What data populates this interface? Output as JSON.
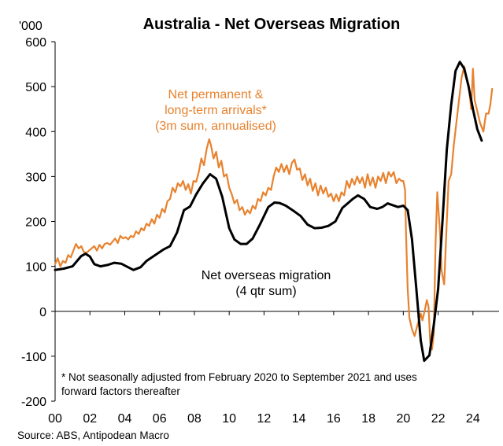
{
  "chart_data": {
    "type": "line",
    "title": "Australia - Net Overseas Migration",
    "y_unit_label": "'000",
    "xlim": [
      2000,
      2025.5
    ],
    "ylim": [
      -200,
      600
    ],
    "y_ticks": [
      "-200",
      "-100",
      "0",
      "100",
      "200",
      "300",
      "400",
      "500",
      "600"
    ],
    "x_ticks": [
      {
        "value": 2000,
        "label": "00"
      },
      {
        "value": 2002,
        "label": "02"
      },
      {
        "value": 2004,
        "label": "04"
      },
      {
        "value": 2006,
        "label": "06"
      },
      {
        "value": 2008,
        "label": "08"
      },
      {
        "value": 2010,
        "label": "10"
      },
      {
        "value": 2012,
        "label": "12"
      },
      {
        "value": 2014,
        "label": "14"
      },
      {
        "value": 2016,
        "label": "16"
      },
      {
        "value": 2018,
        "label": "18"
      },
      {
        "value": 2020,
        "label": "20"
      },
      {
        "value": 2022,
        "label": "22"
      },
      {
        "value": 2024,
        "label": "24"
      }
    ],
    "grid": false,
    "annotations": {
      "orange_label": [
        "Net permanent &",
        "long-term arrivals*",
        "(3m sum, annualised)"
      ],
      "black_label": [
        "Net overseas migration",
        "(4 qtr sum)"
      ],
      "footnote": [
        "* Not seasonally adjusted from February 2020 to September 2021 and uses",
        "forward factors thereafter"
      ]
    },
    "source": "Source: ABS, Antipodean Macro",
    "series": [
      {
        "key": "arrivals",
        "color": "#E8822E",
        "width": 2.2,
        "points": [
          [
            2000.0,
            105
          ],
          [
            2000.15,
            118
          ],
          [
            2000.3,
            100
          ],
          [
            2000.45,
            112
          ],
          [
            2000.6,
            108
          ],
          [
            2000.75,
            125
          ],
          [
            2000.9,
            120
          ],
          [
            2001.05,
            135
          ],
          [
            2001.2,
            150
          ],
          [
            2001.35,
            140
          ],
          [
            2001.5,
            145
          ],
          [
            2001.65,
            132
          ],
          [
            2001.8,
            130
          ],
          [
            2001.95,
            135
          ],
          [
            2002.1,
            140
          ],
          [
            2002.25,
            145
          ],
          [
            2002.4,
            135
          ],
          [
            2002.55,
            148
          ],
          [
            2002.7,
            140
          ],
          [
            2002.85,
            150
          ],
          [
            2003.0,
            152
          ],
          [
            2003.15,
            148
          ],
          [
            2003.3,
            155
          ],
          [
            2003.45,
            162
          ],
          [
            2003.6,
            152
          ],
          [
            2003.75,
            168
          ],
          [
            2003.9,
            162
          ],
          [
            2004.05,
            165
          ],
          [
            2004.2,
            160
          ],
          [
            2004.35,
            168
          ],
          [
            2004.5,
            165
          ],
          [
            2004.65,
            178
          ],
          [
            2004.8,
            172
          ],
          [
            2004.95,
            185
          ],
          [
            2005.1,
            180
          ],
          [
            2005.25,
            195
          ],
          [
            2005.4,
            190
          ],
          [
            2005.55,
            205
          ],
          [
            2005.7,
            195
          ],
          [
            2005.85,
            215
          ],
          [
            2006.0,
            208
          ],
          [
            2006.15,
            228
          ],
          [
            2006.3,
            220
          ],
          [
            2006.45,
            245
          ],
          [
            2006.6,
            250
          ],
          [
            2006.75,
            275
          ],
          [
            2006.9,
            265
          ],
          [
            2007.05,
            285
          ],
          [
            2007.2,
            278
          ],
          [
            2007.35,
            290
          ],
          [
            2007.5,
            270
          ],
          [
            2007.65,
            283
          ],
          [
            2007.8,
            262
          ],
          [
            2007.95,
            290
          ],
          [
            2008.1,
            288
          ],
          [
            2008.25,
            310
          ],
          [
            2008.4,
            340
          ],
          [
            2008.55,
            325
          ],
          [
            2008.7,
            360
          ],
          [
            2008.85,
            383
          ],
          [
            2008.95,
            370
          ],
          [
            2009.1,
            340
          ],
          [
            2009.25,
            355
          ],
          [
            2009.4,
            320
          ],
          [
            2009.55,
            335
          ],
          [
            2009.7,
            300
          ],
          [
            2009.85,
            305
          ],
          [
            2010.0,
            275
          ],
          [
            2010.15,
            260
          ],
          [
            2010.3,
            240
          ],
          [
            2010.45,
            248
          ],
          [
            2010.6,
            225
          ],
          [
            2010.75,
            232
          ],
          [
            2010.9,
            215
          ],
          [
            2011.05,
            225
          ],
          [
            2011.2,
            218
          ],
          [
            2011.35,
            235
          ],
          [
            2011.5,
            228
          ],
          [
            2011.65,
            250
          ],
          [
            2011.8,
            245
          ],
          [
            2011.95,
            265
          ],
          [
            2012.1,
            258
          ],
          [
            2012.25,
            275
          ],
          [
            2012.4,
            270
          ],
          [
            2012.55,
            300
          ],
          [
            2012.7,
            320
          ],
          [
            2012.85,
            310
          ],
          [
            2013.0,
            328
          ],
          [
            2013.15,
            310
          ],
          [
            2013.3,
            325
          ],
          [
            2013.45,
            305
          ],
          [
            2013.6,
            330
          ],
          [
            2013.75,
            338
          ],
          [
            2013.9,
            315
          ],
          [
            2014.05,
            318
          ],
          [
            2014.2,
            292
          ],
          [
            2014.35,
            305
          ],
          [
            2014.5,
            280
          ],
          [
            2014.65,
            295
          ],
          [
            2014.8,
            268
          ],
          [
            2014.95,
            285
          ],
          [
            2015.1,
            258
          ],
          [
            2015.25,
            280
          ],
          [
            2015.4,
            262
          ],
          [
            2015.55,
            275
          ],
          [
            2015.7,
            255
          ],
          [
            2015.85,
            262
          ],
          [
            2016.0,
            245
          ],
          [
            2016.15,
            260
          ],
          [
            2016.3,
            245
          ],
          [
            2016.45,
            265
          ],
          [
            2016.6,
            258
          ],
          [
            2016.75,
            290
          ],
          [
            2016.9,
            275
          ],
          [
            2017.05,
            295
          ],
          [
            2017.2,
            282
          ],
          [
            2017.35,
            300
          ],
          [
            2017.5,
            285
          ],
          [
            2017.65,
            298
          ],
          [
            2017.8,
            275
          ],
          [
            2017.95,
            305
          ],
          [
            2018.1,
            280
          ],
          [
            2018.25,
            298
          ],
          [
            2018.4,
            275
          ],
          [
            2018.55,
            300
          ],
          [
            2018.7,
            290
          ],
          [
            2018.85,
            308
          ],
          [
            2019.0,
            285
          ],
          [
            2019.15,
            310
          ],
          [
            2019.3,
            300
          ],
          [
            2019.45,
            310
          ],
          [
            2019.6,
            285
          ],
          [
            2019.75,
            295
          ],
          [
            2019.9,
            290
          ],
          [
            2020.0,
            290
          ],
          [
            2020.1,
            270
          ],
          [
            2020.15,
            180
          ],
          [
            2020.25,
            50
          ],
          [
            2020.35,
            -15
          ],
          [
            2020.5,
            -40
          ],
          [
            2020.65,
            -55
          ],
          [
            2020.85,
            -25
          ],
          [
            2021.0,
            -5
          ],
          [
            2021.1,
            -20
          ],
          [
            2021.25,
            5
          ],
          [
            2021.35,
            25
          ],
          [
            2021.45,
            10
          ],
          [
            2021.55,
            -70
          ],
          [
            2021.65,
            -85
          ],
          [
            2021.75,
            -50
          ],
          [
            2021.85,
            150
          ],
          [
            2021.95,
            265
          ],
          [
            2022.1,
            180
          ],
          [
            2022.2,
            90
          ],
          [
            2022.35,
            60
          ],
          [
            2022.5,
            200
          ],
          [
            2022.6,
            290
          ],
          [
            2022.75,
            305
          ],
          [
            2022.9,
            370
          ],
          [
            2023.05,
            420
          ],
          [
            2023.2,
            470
          ],
          [
            2023.35,
            520
          ],
          [
            2023.5,
            545
          ],
          [
            2023.6,
            520
          ],
          [
            2023.75,
            505
          ],
          [
            2023.9,
            450
          ],
          [
            2024.0,
            540
          ],
          [
            2024.1,
            470
          ],
          [
            2024.25,
            445
          ],
          [
            2024.4,
            420
          ],
          [
            2024.6,
            400
          ],
          [
            2024.75,
            440
          ],
          [
            2024.9,
            440
          ],
          [
            2025.0,
            460
          ],
          [
            2025.1,
            495
          ]
        ]
      },
      {
        "key": "nom",
        "color": "#000000",
        "width": 3,
        "points": [
          [
            2000.0,
            92
          ],
          [
            2000.5,
            95
          ],
          [
            2001.0,
            100
          ],
          [
            2001.5,
            123
          ],
          [
            2001.75,
            128
          ],
          [
            2002.0,
            122
          ],
          [
            2002.25,
            105
          ],
          [
            2002.6,
            100
          ],
          [
            2003.0,
            103
          ],
          [
            2003.4,
            108
          ],
          [
            2003.8,
            106
          ],
          [
            2004.2,
            98
          ],
          [
            2004.5,
            92
          ],
          [
            2004.9,
            98
          ],
          [
            2005.25,
            112
          ],
          [
            2005.75,
            125
          ],
          [
            2006.25,
            138
          ],
          [
            2006.6,
            145
          ],
          [
            2007.0,
            175
          ],
          [
            2007.4,
            225
          ],
          [
            2007.75,
            233
          ],
          [
            2008.1,
            260
          ],
          [
            2008.5,
            285
          ],
          [
            2008.9,
            305
          ],
          [
            2009.25,
            295
          ],
          [
            2009.6,
            255
          ],
          [
            2010.0,
            185
          ],
          [
            2010.3,
            160
          ],
          [
            2010.65,
            150
          ],
          [
            2011.0,
            150
          ],
          [
            2011.35,
            162
          ],
          [
            2011.75,
            192
          ],
          [
            2012.25,
            232
          ],
          [
            2012.6,
            242
          ],
          [
            2012.9,
            241
          ],
          [
            2013.25,
            235
          ],
          [
            2013.75,
            222
          ],
          [
            2014.1,
            212
          ],
          [
            2014.5,
            193
          ],
          [
            2014.9,
            185
          ],
          [
            2015.3,
            186
          ],
          [
            2015.7,
            190
          ],
          [
            2016.1,
            200
          ],
          [
            2016.5,
            230
          ],
          [
            2016.8,
            240
          ],
          [
            2017.1,
            250
          ],
          [
            2017.4,
            258
          ],
          [
            2017.75,
            250
          ],
          [
            2018.1,
            232
          ],
          [
            2018.5,
            228
          ],
          [
            2018.8,
            232
          ],
          [
            2019.1,
            240
          ],
          [
            2019.4,
            236
          ],
          [
            2019.7,
            232
          ],
          [
            2020.0,
            235
          ],
          [
            2020.25,
            225
          ],
          [
            2020.5,
            160
          ],
          [
            2020.75,
            50
          ],
          [
            2021.0,
            -65
          ],
          [
            2021.2,
            -110
          ],
          [
            2021.5,
            -98
          ],
          [
            2021.75,
            -30
          ],
          [
            2022.0,
            50
          ],
          [
            2022.25,
            200
          ],
          [
            2022.5,
            360
          ],
          [
            2022.75,
            460
          ],
          [
            2023.0,
            535
          ],
          [
            2023.25,
            555
          ],
          [
            2023.5,
            540
          ],
          [
            2023.75,
            500
          ],
          [
            2024.0,
            450
          ],
          [
            2024.25,
            405
          ],
          [
            2024.5,
            380
          ]
        ]
      }
    ]
  }
}
